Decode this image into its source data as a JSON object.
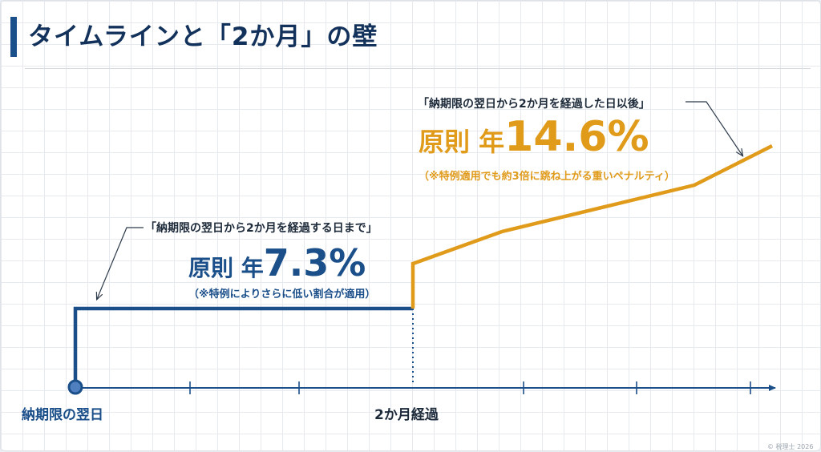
{
  "title": "タイムラインと「2か月」の壁",
  "phase1": {
    "note": "「納期限の翌日から2か月を経過する日まで」",
    "rate_word": "原則 年",
    "rate_value": "7.3%",
    "sub": "（※特例によりさらに低い割合が適用）",
    "color": "#1b4f8a"
  },
  "phase2": {
    "note": "「納期限の翌日から2か月を経過した日以後」",
    "rate_word": "原則 年",
    "rate_value": "14.6%",
    "sub": "（※特例適用でも約3倍に跳ね上がる重いペナルティ）",
    "color": "#e09b1b"
  },
  "axis": {
    "start_label": "納期限の翌日",
    "milestone_label": "2か月経過"
  },
  "footer": "© 税理士 2026"
}
